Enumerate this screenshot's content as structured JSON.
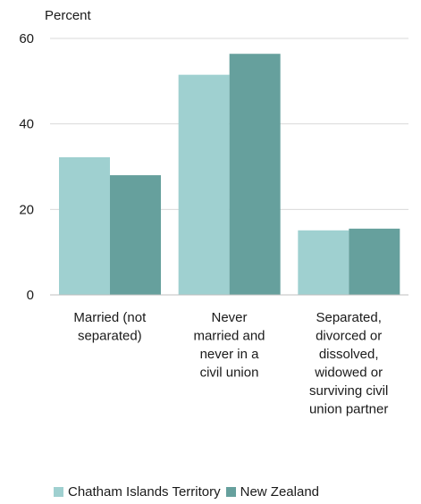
{
  "chart_data": {
    "type": "bar",
    "ylabel": "Percent",
    "ylim": [
      0,
      60
    ],
    "yticks": [
      0,
      20,
      40,
      60
    ],
    "categories": [
      [
        "Married (not",
        "separated)"
      ],
      [
        "Never",
        "married and",
        "never in a",
        "civil union"
      ],
      [
        "Separated,",
        "divorced or",
        "dissolved,",
        "widowed or",
        "surviving civil",
        "union partner"
      ]
    ],
    "series": [
      {
        "name": "Chatham Islands Territory",
        "color": "#9fd0d0",
        "values": [
          32.2,
          51.5,
          15.1
        ]
      },
      {
        "name": "New Zealand",
        "color": "#66a09d",
        "values": [
          28.0,
          56.4,
          15.5
        ]
      }
    ],
    "grid": true,
    "legend": "bottom"
  }
}
